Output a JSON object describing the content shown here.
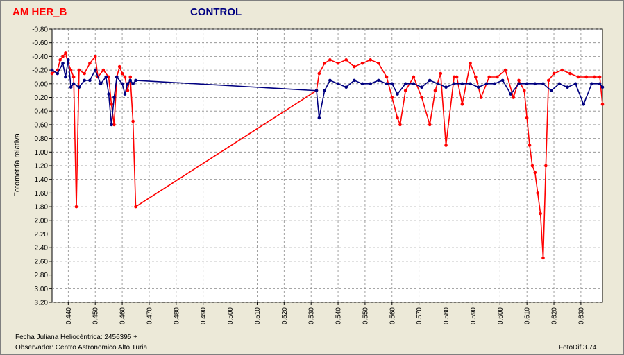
{
  "titles": {
    "target": "AM HER_B",
    "control": "CONTROL"
  },
  "ylabel": "Fotometría relativa",
  "footer": {
    "date_label": "Fecha Juliana Heliocéntrica: 2456395 +",
    "observer": "Observador: Centro Astronomico Alto Turia",
    "software": "FotoDif 3.74"
  },
  "colors": {
    "target": "#ff0000",
    "control": "#000080",
    "grid": "#888888"
  },
  "chart_data": {
    "type": "line",
    "xlim": [
      0.434,
      0.638
    ],
    "ylim": [
      -0.8,
      3.2
    ],
    "y_inverted": true,
    "grid": true,
    "x_ticks": [
      "0.440",
      "0.450",
      "0.460",
      "0.470",
      "0.480",
      "0.490",
      "0.500",
      "0.510",
      "0.520",
      "0.530",
      "0.540",
      "0.550",
      "0.560",
      "0.570",
      "0.580",
      "0.590",
      "0.600",
      "0.610",
      "0.620",
      "0.630"
    ],
    "y_ticks": [
      "-0.80",
      "-0.60",
      "-0.40",
      "-0.20",
      "0.00",
      "0.20",
      "0.40",
      "0.60",
      "0.80",
      "1.00",
      "1.20",
      "1.40",
      "1.60",
      "1.80",
      "2.00",
      "2.20",
      "2.40",
      "2.60",
      "2.80",
      "3.00",
      "3.20"
    ],
    "series": [
      {
        "name": "AM HER_B",
        "x": [
          0.434,
          0.436,
          0.437,
          0.438,
          0.439,
          0.44,
          0.441,
          0.442,
          0.443,
          0.444,
          0.446,
          0.448,
          0.45,
          0.451,
          0.453,
          0.455,
          0.456,
          0.457,
          0.458,
          0.459,
          0.46,
          0.461,
          0.462,
          0.463,
          0.464,
          0.465,
          0.532,
          0.533,
          0.535,
          0.537,
          0.54,
          0.543,
          0.546,
          0.549,
          0.552,
          0.555,
          0.558,
          0.56,
          0.562,
          0.563,
          0.565,
          0.568,
          0.571,
          0.574,
          0.576,
          0.578,
          0.58,
          0.583,
          0.584,
          0.586,
          0.589,
          0.591,
          0.593,
          0.596,
          0.599,
          0.602,
          0.605,
          0.607,
          0.609,
          0.61,
          0.611,
          0.612,
          0.613,
          0.614,
          0.615,
          0.616,
          0.617,
          0.618,
          0.62,
          0.623,
          0.626,
          0.629,
          0.632,
          0.635,
          0.637,
          0.638
        ],
        "y": [
          -0.15,
          -0.2,
          -0.35,
          -0.4,
          -0.45,
          -0.3,
          -0.2,
          -0.1,
          1.8,
          -0.2,
          -0.15,
          -0.3,
          -0.4,
          -0.1,
          -0.2,
          -0.1,
          0.3,
          0.6,
          -0.1,
          -0.25,
          -0.15,
          -0.1,
          0.1,
          -0.1,
          0.55,
          1.8,
          0.1,
          -0.15,
          -0.3,
          -0.35,
          -0.3,
          -0.35,
          -0.25,
          -0.3,
          -0.35,
          -0.3,
          -0.1,
          0.2,
          0.5,
          0.6,
          0.1,
          -0.1,
          0.2,
          0.6,
          0.1,
          -0.15,
          0.9,
          -0.1,
          -0.1,
          0.3,
          -0.3,
          -0.1,
          0.2,
          -0.1,
          -0.1,
          -0.2,
          0.2,
          -0.05,
          0.1,
          0.5,
          0.9,
          1.2,
          1.3,
          1.6,
          1.9,
          2.55,
          1.2,
          -0.05,
          -0.15,
          -0.2,
          -0.15,
          -0.1,
          -0.1,
          -0.1,
          -0.1,
          0.3
        ]
      },
      {
        "name": "CONTROL",
        "x": [
          0.434,
          0.436,
          0.438,
          0.439,
          0.44,
          0.441,
          0.442,
          0.444,
          0.446,
          0.448,
          0.45,
          0.452,
          0.454,
          0.455,
          0.456,
          0.457,
          0.458,
          0.46,
          0.461,
          0.462,
          0.463,
          0.464,
          0.465,
          0.532,
          0.533,
          0.535,
          0.537,
          0.54,
          0.543,
          0.546,
          0.549,
          0.552,
          0.555,
          0.558,
          0.56,
          0.562,
          0.565,
          0.568,
          0.571,
          0.574,
          0.577,
          0.58,
          0.583,
          0.586,
          0.589,
          0.592,
          0.595,
          0.598,
          0.601,
          0.604,
          0.607,
          0.61,
          0.613,
          0.616,
          0.619,
          0.622,
          0.625,
          0.628,
          0.631,
          0.634,
          0.637,
          0.638
        ],
        "y": [
          -0.2,
          -0.15,
          -0.3,
          -0.1,
          -0.35,
          0.05,
          0.0,
          0.05,
          -0.05,
          -0.05,
          -0.2,
          0.0,
          -0.1,
          0.15,
          0.6,
          0.2,
          -0.1,
          0.0,
          0.15,
          0.0,
          -0.05,
          0.0,
          -0.05,
          0.1,
          0.5,
          0.1,
          -0.05,
          0.0,
          0.05,
          -0.05,
          0.0,
          0.0,
          -0.05,
          0.0,
          0.0,
          0.15,
          0.0,
          0.0,
          0.05,
          -0.05,
          0.0,
          0.05,
          0.0,
          0.0,
          0.0,
          0.05,
          0.0,
          0.0,
          -0.05,
          0.15,
          0.0,
          0.0,
          0.0,
          0.0,
          0.1,
          0.0,
          0.05,
          0.0,
          0.3,
          0.0,
          0.0,
          0.05
        ]
      }
    ]
  }
}
